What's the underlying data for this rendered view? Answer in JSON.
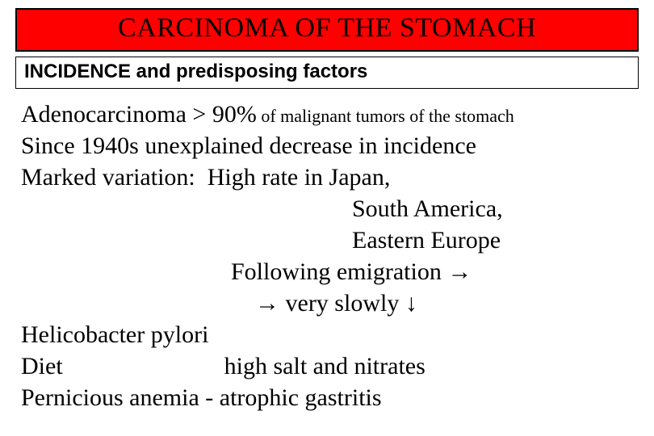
{
  "colors": {
    "title_bg": "#ff0000",
    "border": "#000000",
    "text": "#000000",
    "background": "#ffffff"
  },
  "typography": {
    "title_fontsize": 34,
    "subtitle_fontsize": 24,
    "body_fontsize": 30,
    "small_fontsize": 22,
    "title_family": "Times New Roman",
    "subtitle_family": "Arial",
    "body_family": "Times New Roman"
  },
  "title": "CARCINOMA OF THE STOMACH",
  "subtitle": "INCIDENCE and predisposing factors",
  "body": {
    "l1a": "Adenocarcinoma > 90%",
    "l1b": " of malignant tumors of the stomach",
    "l2": "Since 1940s unexplained decrease in incidence",
    "l3": "Marked variation:  High rate in Japan,",
    "l4": "South America,",
    "l5": "Eastern Europe",
    "l6": "Following emigration →",
    "l7": "→ very slowly ↓",
    "l8": "Helicobacter pylori",
    "l9a": "Diet",
    "l9b": "high salt and nitrates",
    "l10": "Pernicious anemia - atrophic gastritis"
  }
}
